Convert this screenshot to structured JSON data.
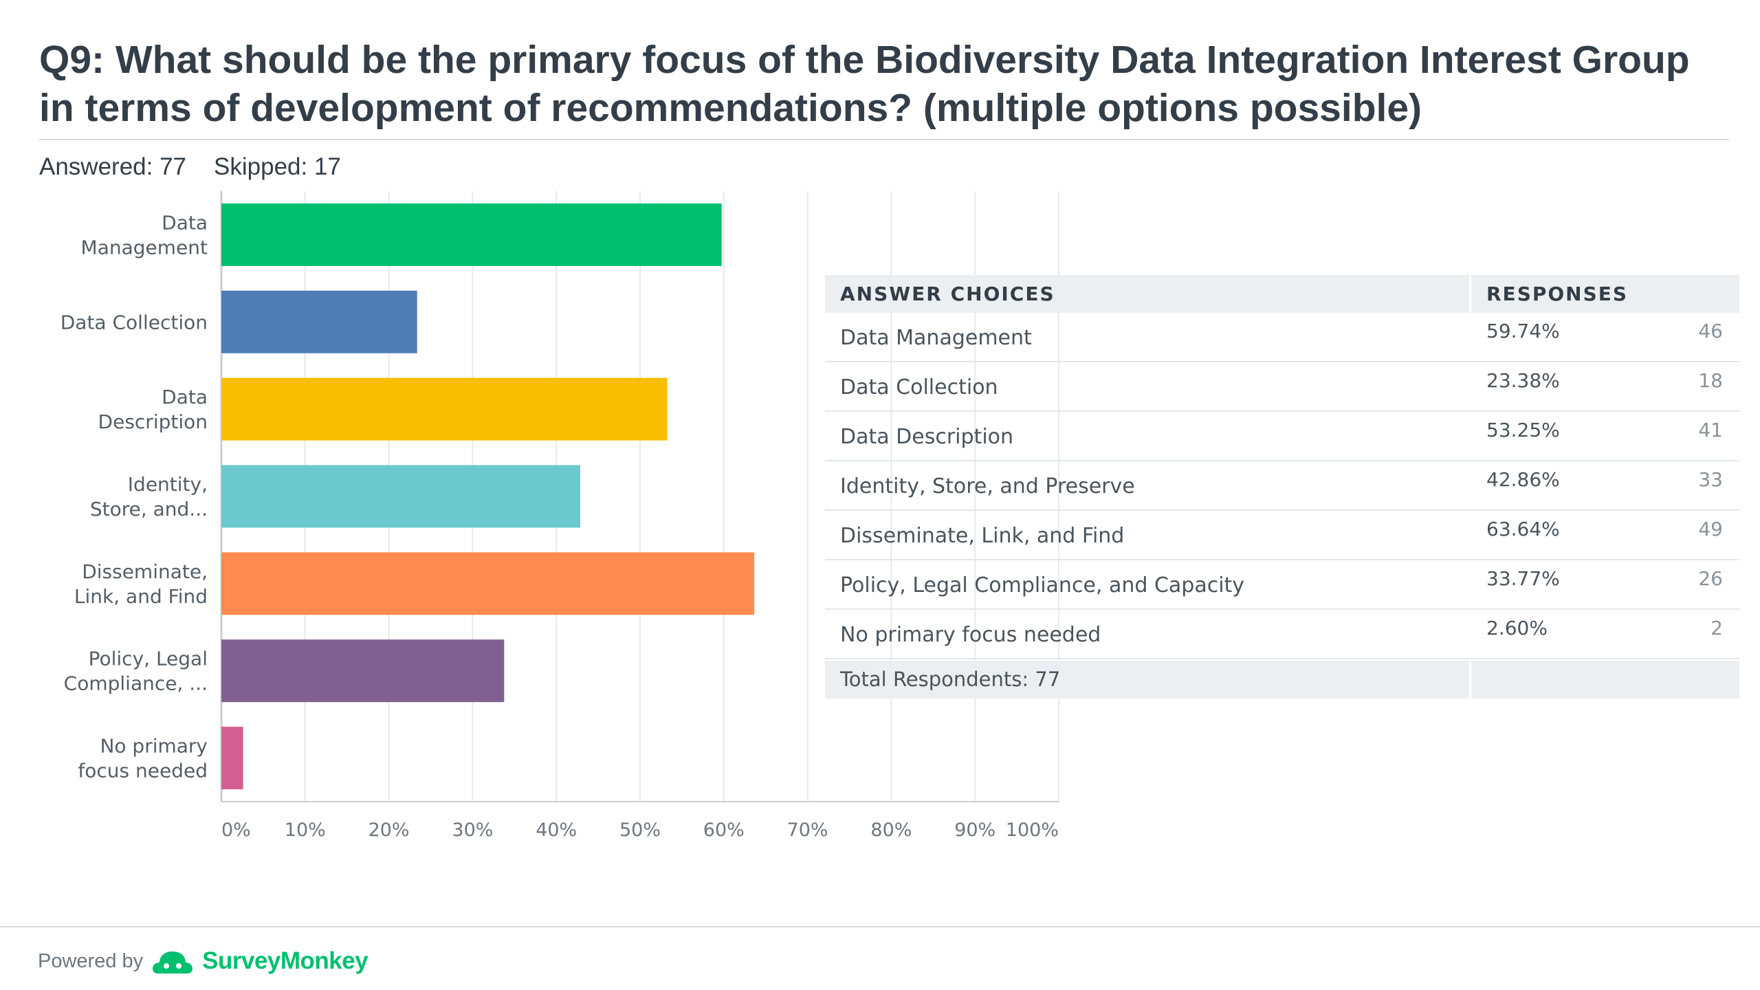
{
  "survey": {
    "question_title": "Q9: What should be the primary focus of the Biodiversity Data Integration Interest Group in terms of development of recommendations? (multiple options possible)",
    "answered_label": "Answered: 77",
    "skipped_label": "Skipped: 17"
  },
  "chart_data": {
    "type": "bar",
    "orientation": "horizontal",
    "categories": [
      [
        "Data",
        "Management"
      ],
      [
        "Data Collection"
      ],
      [
        "Data",
        "Description"
      ],
      [
        "Identity,",
        "Store, and..."
      ],
      [
        "Disseminate,",
        "Link, and Find"
      ],
      [
        "Policy, Legal",
        "Compliance, ..."
      ],
      [
        "No primary",
        "focus needed"
      ]
    ],
    "values": [
      59.74,
      23.38,
      53.25,
      42.86,
      63.64,
      33.77,
      2.6
    ],
    "colors": [
      "#00bf6f",
      "#507cb6",
      "#f9be00",
      "#6bc8cd",
      "#ff8b4f",
      "#7f6091",
      "#d25f90"
    ],
    "xlim": [
      0,
      100
    ],
    "ticks": [
      0,
      10,
      20,
      30,
      40,
      50,
      60,
      70,
      80,
      90,
      100
    ],
    "tick_labels": [
      "0%",
      "10%",
      "20%",
      "30%",
      "40%",
      "50%",
      "60%",
      "70%",
      "80%",
      "90%",
      "100%"
    ],
    "grid": true
  },
  "table": {
    "header_choice": "ANSWER CHOICES",
    "header_responses": "RESPONSES",
    "rows": [
      {
        "choice": "Data Management",
        "percent": "59.74%",
        "count": "46"
      },
      {
        "choice": "Data Collection",
        "percent": "23.38%",
        "count": "18"
      },
      {
        "choice": "Data Description",
        "percent": "53.25%",
        "count": "41"
      },
      {
        "choice": "Identity, Store, and Preserve",
        "percent": "42.86%",
        "count": "33"
      },
      {
        "choice": "Disseminate, Link, and Find",
        "percent": "63.64%",
        "count": "49"
      },
      {
        "choice": "Policy, Legal Compliance, and Capacity",
        "percent": "33.77%",
        "count": "26"
      },
      {
        "choice": "No primary focus needed",
        "percent": "2.60%",
        "count": "2"
      }
    ],
    "total_label": "Total Respondents: 77"
  },
  "footer": {
    "powered_by": "Powered by",
    "brand": "SurveyMonkey",
    "brand_mark": "·",
    "logo_icon": "surveymonkey-logo-icon",
    "brand_color": "#00bf6f"
  }
}
